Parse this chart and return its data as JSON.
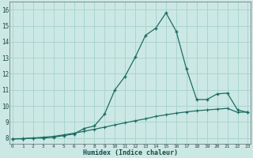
{
  "xlabel": "Humidex (Indice chaleur)",
  "bg_color": "#cce8e4",
  "grid_color": "#aad4ce",
  "line_color": "#1a6e64",
  "x_ticks": [
    0,
    1,
    2,
    3,
    4,
    5,
    6,
    7,
    8,
    9,
    10,
    11,
    12,
    13,
    14,
    15,
    16,
    17,
    18,
    19,
    20,
    21,
    22,
    23
  ],
  "y_ticks": [
    8,
    9,
    10,
    11,
    12,
    13,
    14,
    15,
    16
  ],
  "xlim": [
    -0.3,
    23.3
  ],
  "ylim": [
    7.65,
    16.5
  ],
  "line1_x": [
    0,
    1,
    2,
    3,
    4,
    5,
    6,
    7,
    8,
    9,
    10,
    11,
    12,
    13,
    14,
    15,
    16,
    17,
    18,
    19,
    20,
    21,
    22,
    23
  ],
  "line1_y": [
    7.95,
    7.95,
    8.0,
    8.0,
    8.05,
    8.15,
    8.25,
    8.6,
    8.75,
    9.5,
    11.0,
    11.85,
    13.05,
    14.4,
    14.85,
    15.8,
    14.65,
    12.3,
    10.4,
    10.4,
    10.75,
    10.8,
    9.75,
    9.6
  ],
  "line2_x": [
    0,
    1,
    2,
    3,
    4,
    5,
    6,
    7,
    8,
    9,
    10,
    11,
    12,
    13,
    14,
    15,
    16,
    17,
    18,
    19,
    20,
    21,
    22,
    23
  ],
  "line2_y": [
    7.95,
    7.97,
    8.0,
    8.05,
    8.1,
    8.2,
    8.3,
    8.42,
    8.55,
    8.68,
    8.82,
    8.95,
    9.08,
    9.2,
    9.35,
    9.45,
    9.55,
    9.63,
    9.7,
    9.75,
    9.8,
    9.85,
    9.6,
    9.62
  ]
}
